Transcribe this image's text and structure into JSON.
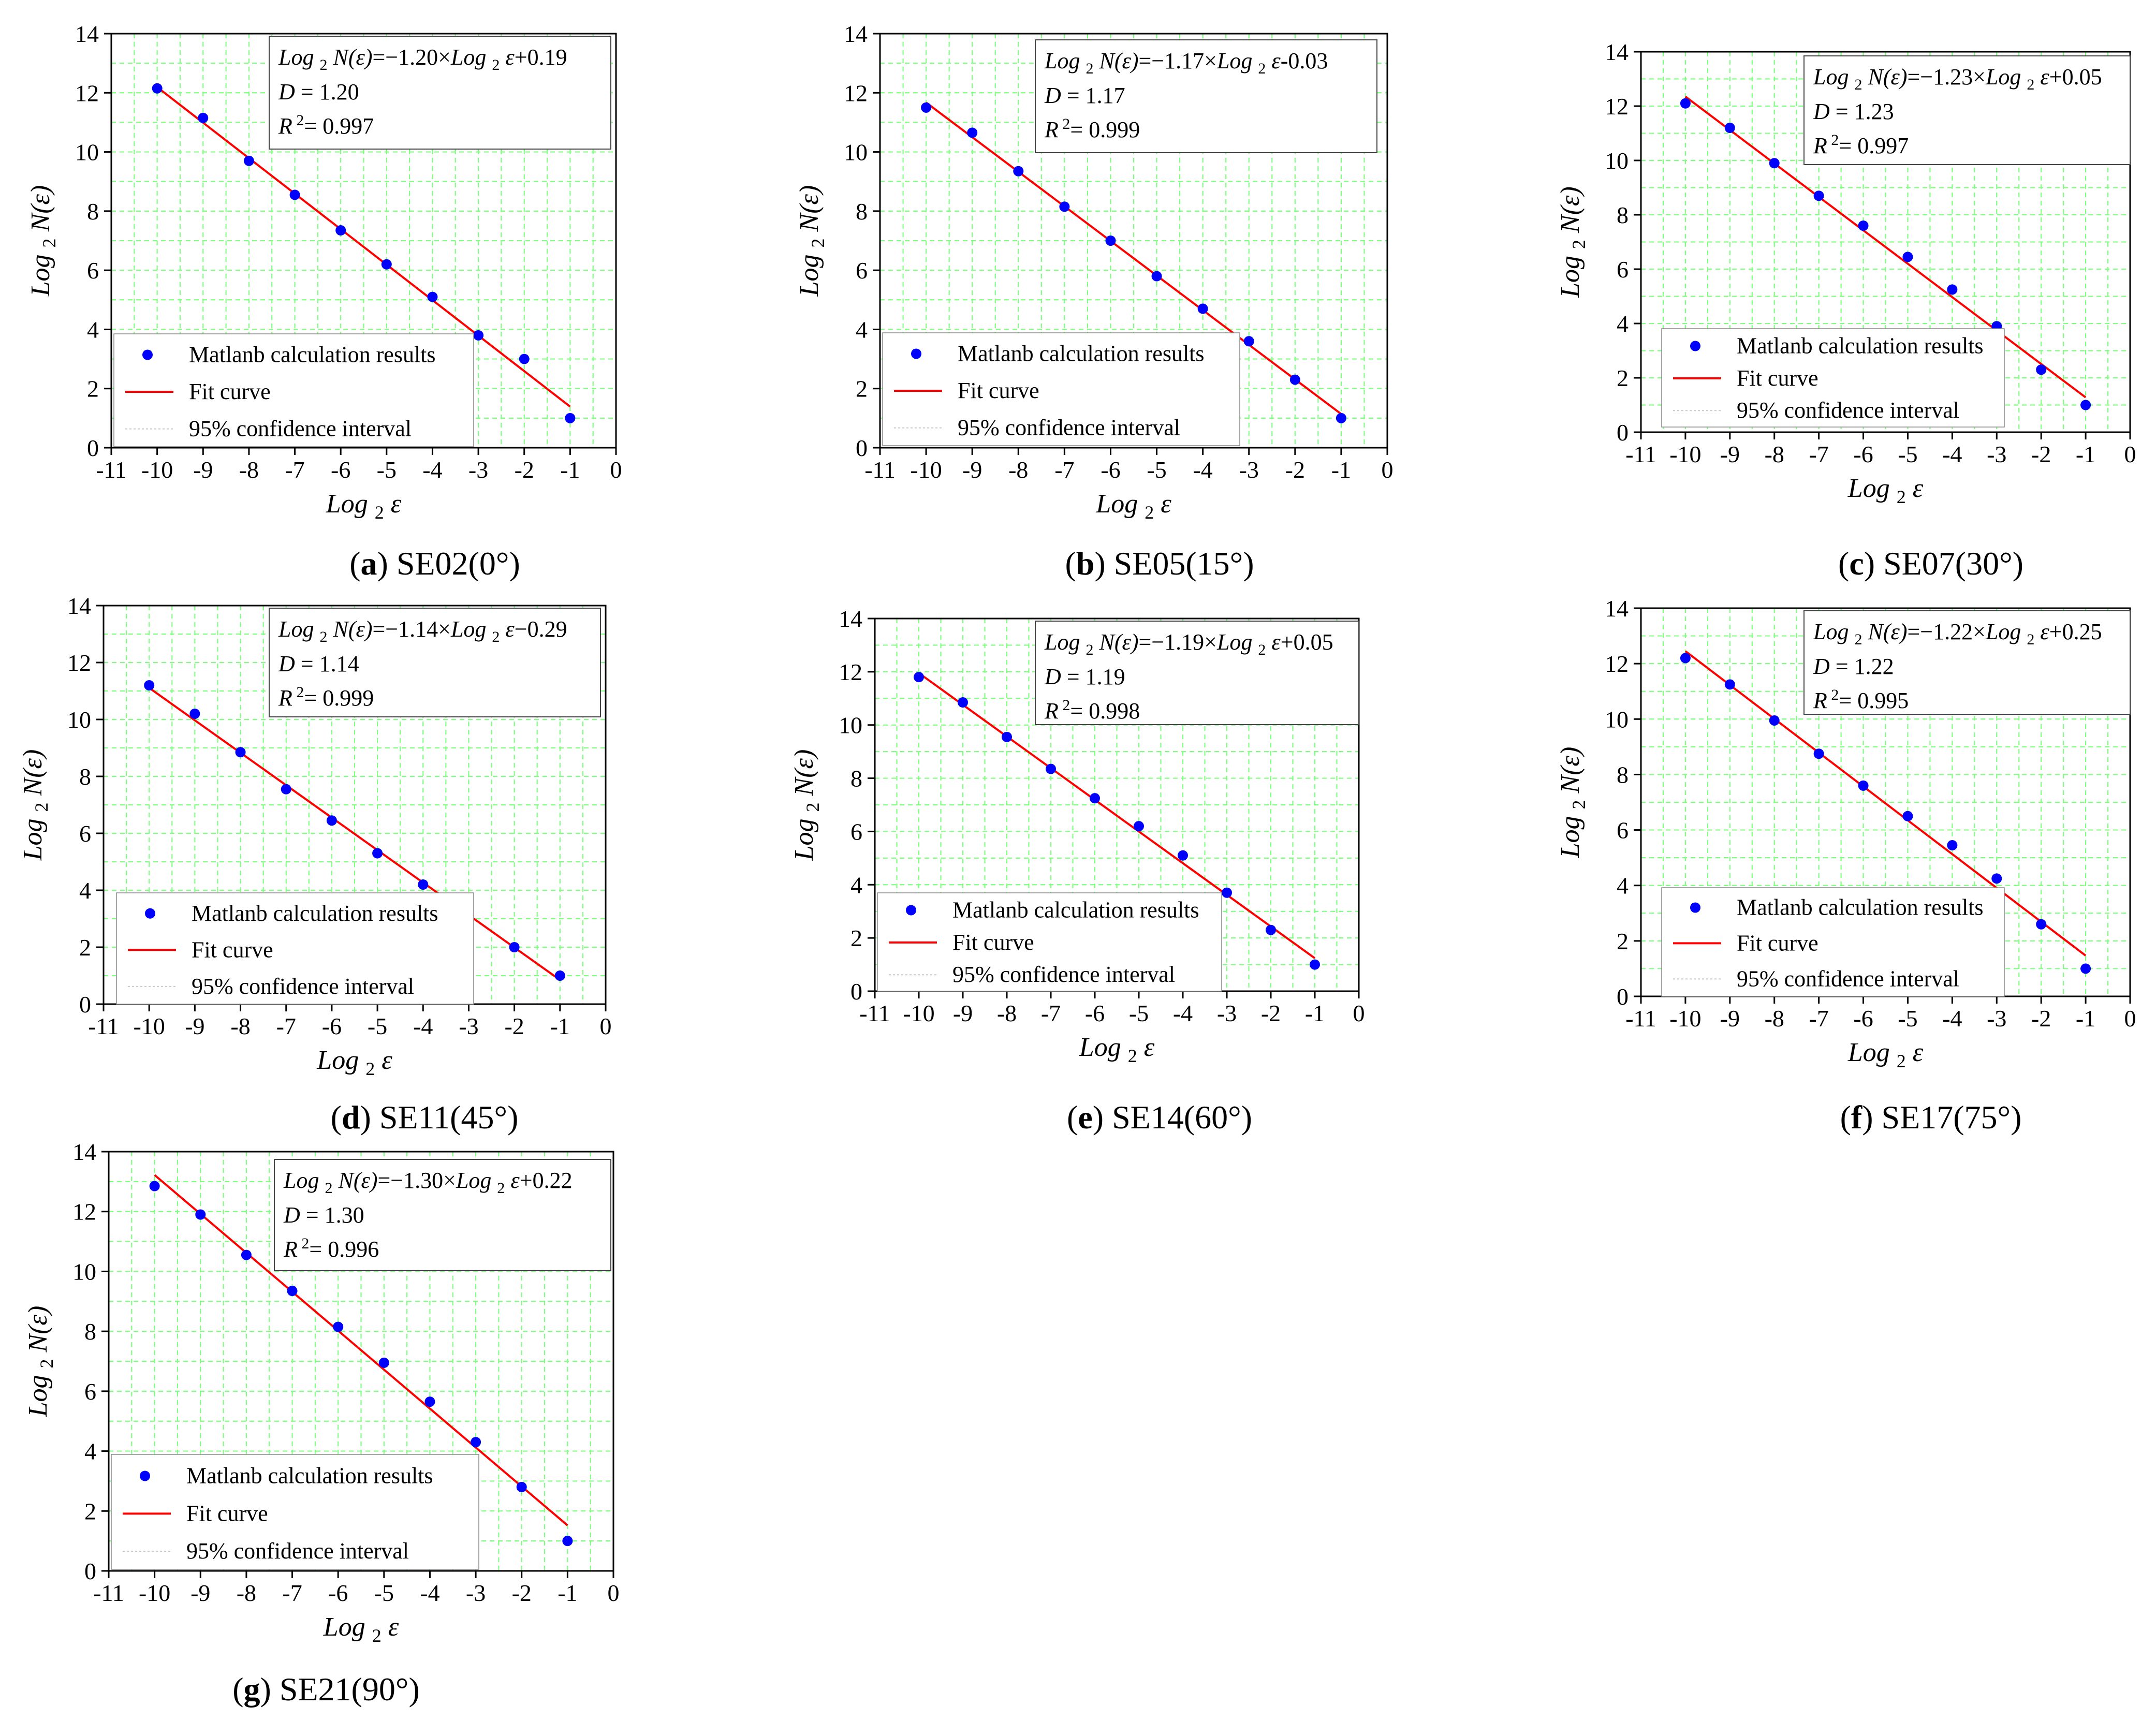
{
  "figure": {
    "common": {
      "xlabel_main": "Log",
      "xlabel_sub": "2",
      "xlabel_var": "ε",
      "ylabel_main": "Log",
      "ylabel_sub": "2",
      "ylabel_var": "N(ε)",
      "eq_prefix": "Log",
      "eq_sub": "2",
      "eq_func": "N(ε)",
      "eq_var": "Log",
      "eq_var_sub": "2",
      "eq_var_symbol": "ε",
      "d_label": "D",
      "r2_label": "R",
      "r2_sup": "2",
      "legend": [
        "Matlanb calculation results",
        "Fit curve",
        "95% confidence interval"
      ]
    },
    "colors": {
      "point": "#0000ff",
      "fit": "#ff0000",
      "grid": "#7fff7f",
      "axis": "#000000",
      "ci": "#c8c8c8"
    }
  },
  "chart_data": [
    {
      "type": "scatter",
      "panel_letter": "a",
      "caption": "SE02(0°)",
      "eq_slope_text": "=−1.20×",
      "eq_intercept_text": "+0.19",
      "d_value": "= 1.20",
      "r2_value": "= 0.997",
      "slope": -1.2,
      "intercept": 0.19,
      "fit_x": [
        -10,
        -1
      ],
      "x": [
        -10,
        -9,
        -8,
        -7,
        -6,
        -5,
        -4,
        -3,
        -2,
        -1
      ],
      "y": [
        12.15,
        11.15,
        9.7,
        8.55,
        7.35,
        6.2,
        5.1,
        3.8,
        3.0,
        1.0
      ],
      "xlim": [
        -11,
        0
      ],
      "ylim": [
        0,
        14
      ],
      "xticks": [
        -11,
        -10,
        -9,
        -8,
        -7,
        -6,
        -5,
        -4,
        -3,
        -2,
        -1,
        0
      ],
      "yticks": [
        0,
        2,
        4,
        6,
        8,
        10,
        12,
        14
      ]
    },
    {
      "type": "scatter",
      "panel_letter": "b",
      "caption": "SE05(15°)",
      "eq_slope_text": "=−1.17×",
      "eq_intercept_text": "-0.03",
      "d_value": "= 1.17",
      "r2_value": "= 0.999",
      "slope": -1.17,
      "intercept": -0.03,
      "fit_x": [
        -10,
        -1
      ],
      "x": [
        -10,
        -9,
        -8,
        -7,
        -6,
        -5,
        -4,
        -3,
        -2,
        -1
      ],
      "y": [
        11.5,
        10.65,
        9.35,
        8.15,
        7.0,
        5.8,
        4.7,
        3.6,
        2.3,
        1.0
      ],
      "xlim": [
        -11,
        0
      ],
      "ylim": [
        0,
        14
      ],
      "xticks": [
        -11,
        -10,
        -9,
        -8,
        -7,
        -6,
        -5,
        -4,
        -3,
        -2,
        -1,
        0
      ],
      "yticks": [
        0,
        2,
        4,
        6,
        8,
        10,
        12,
        14
      ]
    },
    {
      "type": "scatter",
      "panel_letter": "c",
      "caption": "SE07(30°)",
      "eq_slope_text": "=−1.23×",
      "eq_intercept_text": "+0.05",
      "d_value": "= 1.23",
      "r2_value": "= 0.997",
      "slope": -1.23,
      "intercept": 0.05,
      "fit_x": [
        -10,
        -1
      ],
      "x": [
        -10,
        -9,
        -8,
        -7,
        -6,
        -5,
        -4,
        -3,
        -2,
        -1
      ],
      "y": [
        12.1,
        11.2,
        9.9,
        8.7,
        7.6,
        6.45,
        5.25,
        3.9,
        2.3,
        1.0
      ],
      "xlim": [
        -11,
        0
      ],
      "ylim": [
        0,
        14
      ],
      "xticks": [
        -11,
        -10,
        -9,
        -8,
        -7,
        -6,
        -5,
        -4,
        -3,
        -2,
        -1,
        0
      ],
      "yticks": [
        0,
        2,
        4,
        6,
        8,
        10,
        12,
        14
      ]
    },
    {
      "type": "scatter",
      "panel_letter": "d",
      "caption": "SE11(45°)",
      "eq_slope_text": "=−1.14×",
      "eq_intercept_text": "−0.29",
      "d_value": "= 1.14",
      "r2_value": "= 0.999",
      "slope": -1.14,
      "intercept": -0.29,
      "fit_x": [
        -10,
        -1
      ],
      "x": [
        -10,
        -9,
        -8,
        -7,
        -6,
        -5,
        -4,
        -3,
        -2,
        -1
      ],
      "y": [
        11.2,
        10.2,
        8.85,
        7.55,
        6.45,
        5.3,
        4.2,
        3.15,
        2.0,
        1.0
      ],
      "xlim": [
        -11,
        0
      ],
      "ylim": [
        0,
        14
      ],
      "xticks": [
        -11,
        -10,
        -9,
        -8,
        -7,
        -6,
        -5,
        -4,
        -3,
        -2,
        -1,
        0
      ],
      "yticks": [
        0,
        2,
        4,
        6,
        8,
        10,
        12,
        14
      ]
    },
    {
      "type": "scatter",
      "panel_letter": "e",
      "caption": "SE14(60°)",
      "eq_slope_text": "=−1.19×",
      "eq_intercept_text": "+0.05",
      "d_value": "= 1.19",
      "r2_value": "= 0.998",
      "slope": -1.19,
      "intercept": 0.05,
      "fit_x": [
        -10,
        -1
      ],
      "x": [
        -10,
        -9,
        -8,
        -7,
        -6,
        -5,
        -4,
        -3,
        -2,
        -1
      ],
      "y": [
        11.8,
        10.85,
        9.55,
        8.35,
        7.25,
        6.2,
        5.1,
        3.7,
        2.3,
        1.0
      ],
      "xlim": [
        -11,
        0
      ],
      "ylim": [
        0,
        14
      ],
      "xticks": [
        -11,
        -10,
        -9,
        -8,
        -7,
        -6,
        -5,
        -4,
        -3,
        -2,
        -1,
        0
      ],
      "yticks": [
        0,
        2,
        4,
        6,
        8,
        10,
        12,
        14
      ]
    },
    {
      "type": "scatter",
      "panel_letter": "f",
      "caption": "SE17(75°)",
      "eq_slope_text": "=−1.22×",
      "eq_intercept_text": "+0.25",
      "d_value": "= 1.22",
      "r2_value": "= 0.995",
      "slope": -1.22,
      "intercept": 0.25,
      "fit_x": [
        -10,
        -1
      ],
      "x": [
        -10,
        -9,
        -8,
        -7,
        -6,
        -5,
        -4,
        -3,
        -2,
        -1
      ],
      "y": [
        12.2,
        11.25,
        9.95,
        8.75,
        7.6,
        6.5,
        5.45,
        4.25,
        2.6,
        1.0
      ],
      "xlim": [
        -11,
        0
      ],
      "ylim": [
        0,
        14
      ],
      "xticks": [
        -11,
        -10,
        -9,
        -8,
        -7,
        -6,
        -5,
        -4,
        -3,
        -2,
        -1,
        0
      ],
      "yticks": [
        0,
        2,
        4,
        6,
        8,
        10,
        12,
        14
      ]
    },
    {
      "type": "scatter",
      "panel_letter": "g",
      "caption": "SE21(90°)",
      "eq_slope_text": "=−1.30×",
      "eq_intercept_text": "+0.22",
      "d_value": "= 1.30",
      "r2_value": "= 0.996",
      "slope": -1.3,
      "intercept": 0.22,
      "fit_x": [
        -10,
        -1
      ],
      "x": [
        -10,
        -9,
        -8,
        -7,
        -6,
        -5,
        -4,
        -3,
        -2,
        -1
      ],
      "y": [
        12.85,
        11.9,
        10.55,
        9.35,
        8.15,
        6.95,
        5.65,
        4.3,
        2.8,
        1.0
      ],
      "xlim": [
        -11,
        0
      ],
      "ylim": [
        0,
        14
      ],
      "xticks": [
        -11,
        -10,
        -9,
        -8,
        -7,
        -6,
        -5,
        -4,
        -3,
        -2,
        -1,
        0
      ],
      "yticks": [
        0,
        2,
        4,
        6,
        8,
        10,
        12,
        14
      ]
    }
  ]
}
